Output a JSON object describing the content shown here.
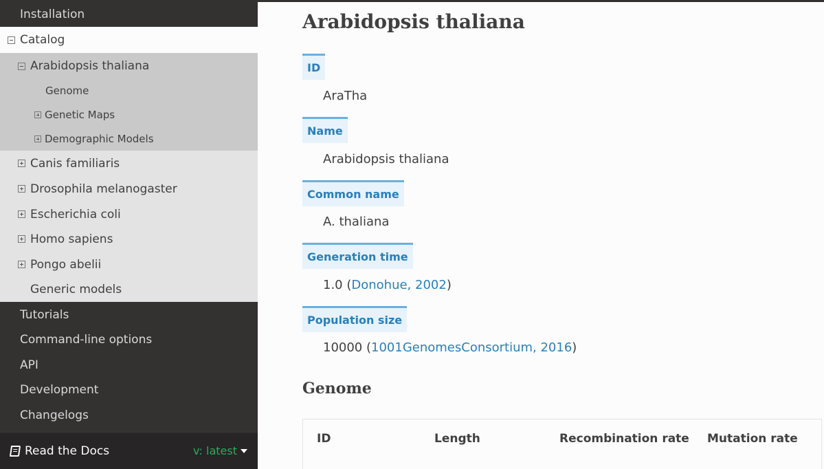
{
  "sidebar": {
    "top_items": [
      "Installation"
    ],
    "catalog": {
      "label": "Catalog",
      "species_current": {
        "label": "Arabidopsis thaliana",
        "children": [
          {
            "label": "Genome",
            "expandable": false
          },
          {
            "label": "Genetic Maps",
            "expandable": true
          },
          {
            "label": "Demographic Models",
            "expandable": true
          }
        ]
      },
      "species_other": [
        "Canis familiaris",
        "Drosophila melanogaster",
        "Escherichia coli",
        "Homo sapiens",
        "Pongo abelii"
      ],
      "generic": "Generic models"
    },
    "bottom_items": [
      "Tutorials",
      "Command-line options",
      "API",
      "Development",
      "Changelogs"
    ]
  },
  "rtd": {
    "label": "Read the Docs",
    "version": "v: latest"
  },
  "main": {
    "title": "Arabidopsis thaliana",
    "fields": [
      {
        "label": "ID",
        "value": "AraTha"
      },
      {
        "label": "Name",
        "value": "Arabidopsis thaliana"
      },
      {
        "label": "Common name",
        "value": "A. thaliana"
      },
      {
        "label": "Generation time",
        "value": "1.0 (",
        "link": "Donohue, 2002",
        "suffix": ")"
      },
      {
        "label": "Population size",
        "value": "10000 (",
        "link": "1001GenomesConsortium, 2016",
        "suffix": ")"
      }
    ],
    "genome_heading": "Genome",
    "table_headers": [
      "ID",
      "Length",
      "Recombination rate",
      "Mutation rate"
    ]
  },
  "colors": {
    "sidebar_bg": "#343131",
    "link": "#2980b9",
    "field_bg": "#e7f2fa",
    "field_border": "#6ab0de",
    "version_green": "#27ae60"
  }
}
